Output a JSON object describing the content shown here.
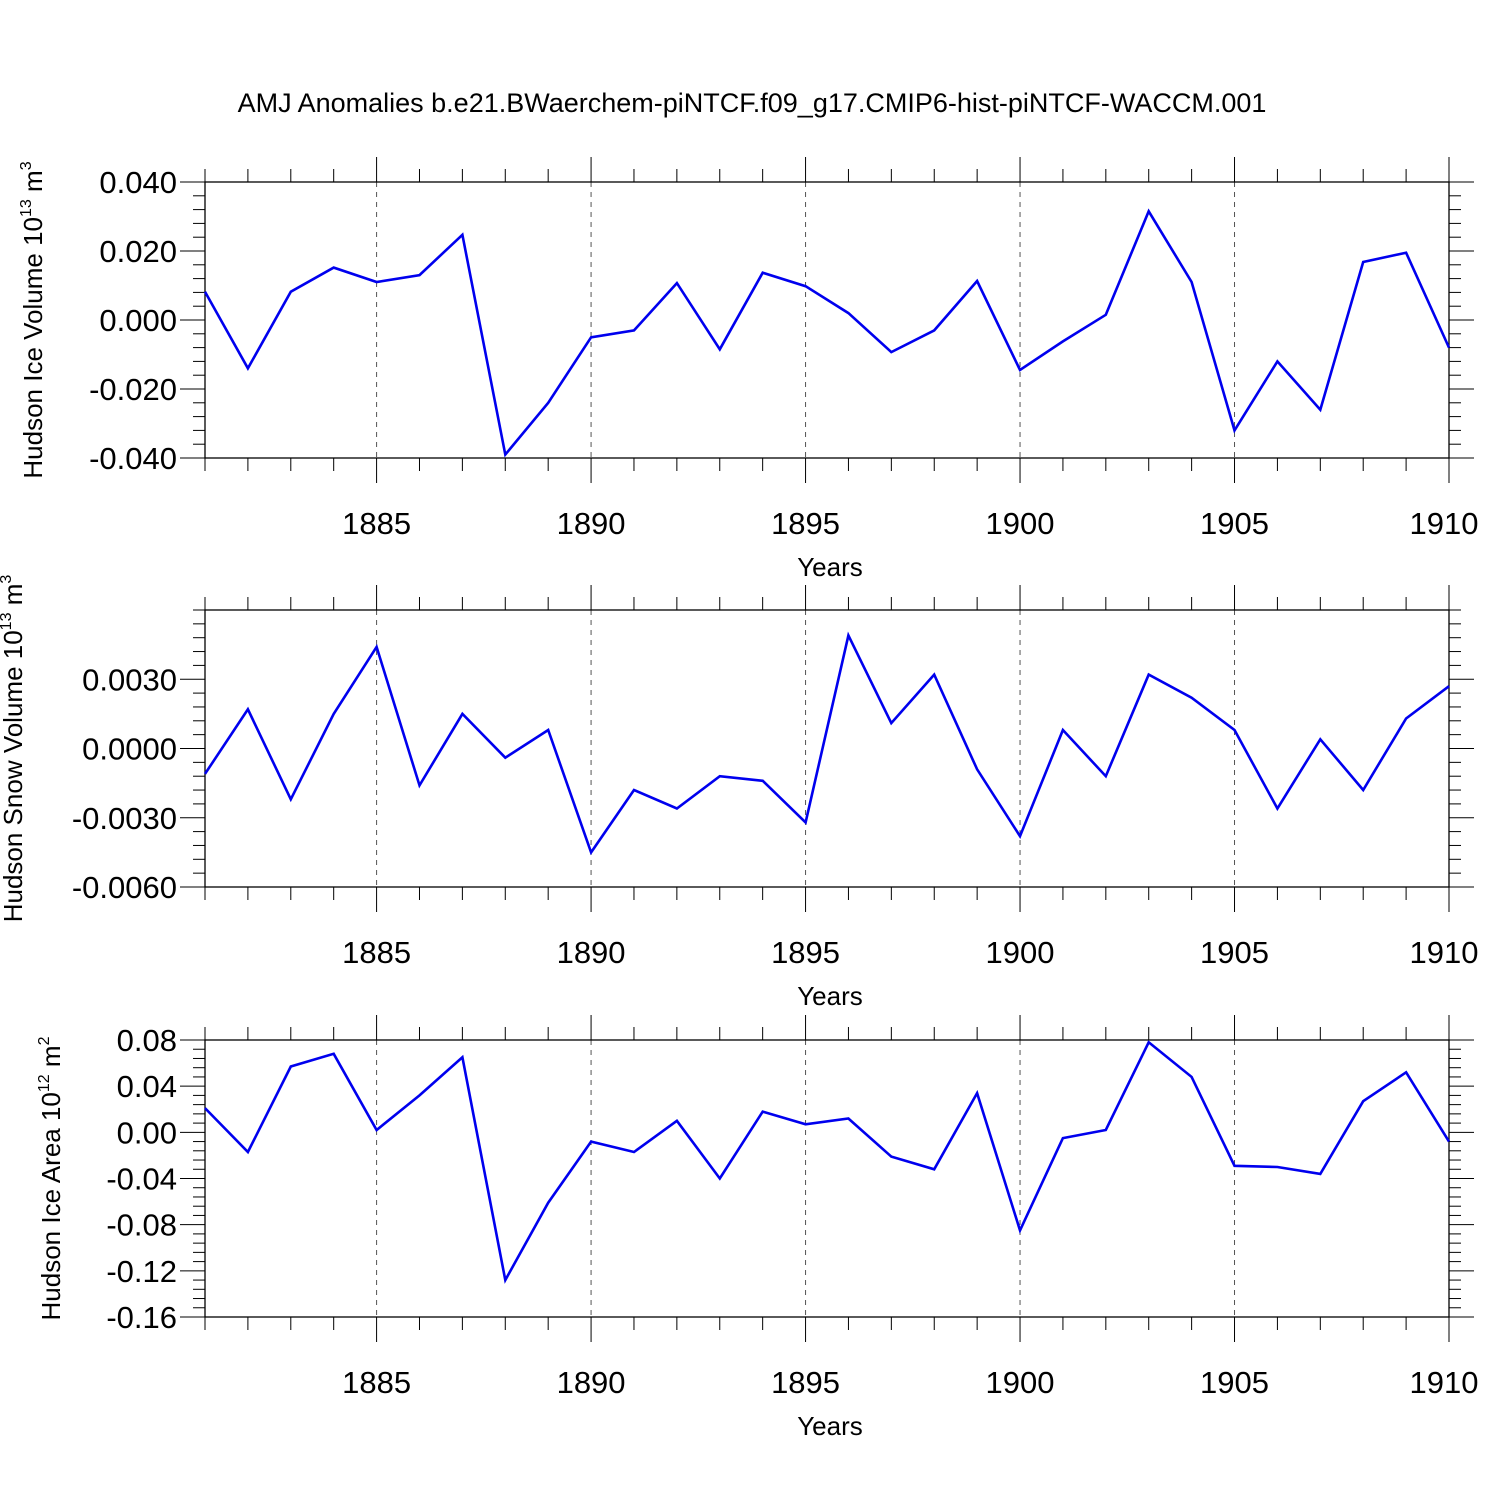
{
  "title": "AMJ Anomalies b.e21.BWaerchem-piNTCF.f09_g17.CMIP6-hist-piNTCF-WACCM.001",
  "colors": {
    "line": "#0000ee",
    "axis": "#000000",
    "grid": "#555555"
  },
  "chart_data": [
    {
      "type": "line",
      "name": "ice-volume",
      "ylabel": "Hudson Ice Volume 10",
      "ylabel_exp": "13",
      "ylabel_unit": " m",
      "ylabel_unit_exp": "3",
      "xlabel": "Years",
      "xlim": [
        1881,
        1910
      ],
      "ylim": [
        -0.04,
        0.04
      ],
      "yticks": [
        -0.04,
        -0.02,
        0.0,
        0.02,
        0.04
      ],
      "ytick_labels": [
        "-0.040",
        "-0.020",
        "0.000",
        "0.020",
        "0.040"
      ],
      "xticks": [
        1885,
        1890,
        1895,
        1900,
        1905,
        1910
      ],
      "xtick_labels": [
        "1885",
        "1890",
        "1895",
        "1900",
        "1905",
        "1910"
      ],
      "x": [
        1881,
        1882,
        1883,
        1884,
        1885,
        1886,
        1887,
        1888,
        1889,
        1890,
        1891,
        1892,
        1893,
        1894,
        1895,
        1896,
        1897,
        1898,
        1899,
        1900,
        1901,
        1902,
        1903,
        1904,
        1905,
        1906,
        1907,
        1908,
        1909,
        1910
      ],
      "values": [
        0.0082,
        -0.014,
        0.0082,
        0.0152,
        0.011,
        0.013,
        0.0247,
        -0.039,
        -0.024,
        -0.005,
        -0.003,
        0.0107,
        -0.0085,
        0.0137,
        0.0098,
        0.002,
        -0.0093,
        -0.003,
        0.0113,
        -0.0145,
        -0.0062,
        0.0015,
        0.0315,
        0.011,
        -0.032,
        -0.012,
        -0.026,
        0.0168,
        0.0195,
        -0.008
      ]
    },
    {
      "type": "line",
      "name": "snow-volume",
      "ylabel": "Hudson Snow Volume 10",
      "ylabel_exp": "13",
      "ylabel_unit": " m",
      "ylabel_unit_exp": "3",
      "xlabel": "Years",
      "xlim": [
        1881,
        1910
      ],
      "ylim": [
        -0.006,
        0.006
      ],
      "yticks": [
        -0.006,
        -0.003,
        0.0,
        0.003
      ],
      "ytick_labels": [
        "-0.0060",
        "-0.0030",
        "0.0000",
        "0.0030"
      ],
      "xticks": [
        1885,
        1890,
        1895,
        1900,
        1905,
        1910
      ],
      "xtick_labels": [
        "1885",
        "1890",
        "1895",
        "1900",
        "1905",
        "1910"
      ],
      "x": [
        1881,
        1882,
        1883,
        1884,
        1885,
        1886,
        1887,
        1888,
        1889,
        1890,
        1891,
        1892,
        1893,
        1894,
        1895,
        1896,
        1897,
        1898,
        1899,
        1900,
        1901,
        1902,
        1903,
        1904,
        1905,
        1906,
        1907,
        1908,
        1909,
        1910
      ],
      "values": [
        -0.0011,
        0.0017,
        -0.0022,
        0.0015,
        0.0044,
        -0.0016,
        0.0015,
        -0.0004,
        0.0008,
        -0.0045,
        -0.0018,
        -0.0026,
        -0.0012,
        -0.0014,
        -0.0032,
        0.0049,
        0.0011,
        0.0032,
        -0.0009,
        -0.0038,
        0.0008,
        -0.0012,
        0.0032,
        0.0022,
        0.0008,
        -0.0026,
        0.0004,
        -0.0018,
        0.0013,
        0.0027
      ]
    },
    {
      "type": "line",
      "name": "ice-area",
      "ylabel": "Hudson Ice Area 10",
      "ylabel_exp": "12",
      "ylabel_unit": " m",
      "ylabel_unit_exp": "2",
      "xlabel": "Years",
      "xlim": [
        1881,
        1910
      ],
      "ylim": [
        -0.16,
        0.08
      ],
      "yticks": [
        -0.16,
        -0.12,
        -0.08,
        -0.04,
        0.0,
        0.04,
        0.08
      ],
      "ytick_labels": [
        "-0.16",
        "-0.12",
        "-0.08",
        "-0.04",
        "0.00",
        "0.04",
        "0.08"
      ],
      "xticks": [
        1885,
        1890,
        1895,
        1900,
        1905,
        1910
      ],
      "xtick_labels": [
        "1885",
        "1890",
        "1895",
        "1900",
        "1905",
        "1910"
      ],
      "x": [
        1881,
        1882,
        1883,
        1884,
        1885,
        1886,
        1887,
        1888,
        1889,
        1890,
        1891,
        1892,
        1893,
        1894,
        1895,
        1896,
        1897,
        1898,
        1899,
        1900,
        1901,
        1902,
        1903,
        1904,
        1905,
        1906,
        1907,
        1908,
        1909,
        1910
      ],
      "values": [
        0.021,
        -0.017,
        0.057,
        0.068,
        0.002,
        0.032,
        0.065,
        -0.128,
        -0.061,
        -0.008,
        -0.017,
        0.01,
        -0.04,
        0.018,
        0.007,
        0.012,
        -0.021,
        -0.032,
        0.034,
        -0.085,
        -0.005,
        0.002,
        0.078,
        0.048,
        -0.029,
        -0.03,
        -0.036,
        0.027,
        0.052,
        -0.008
      ]
    }
  ]
}
